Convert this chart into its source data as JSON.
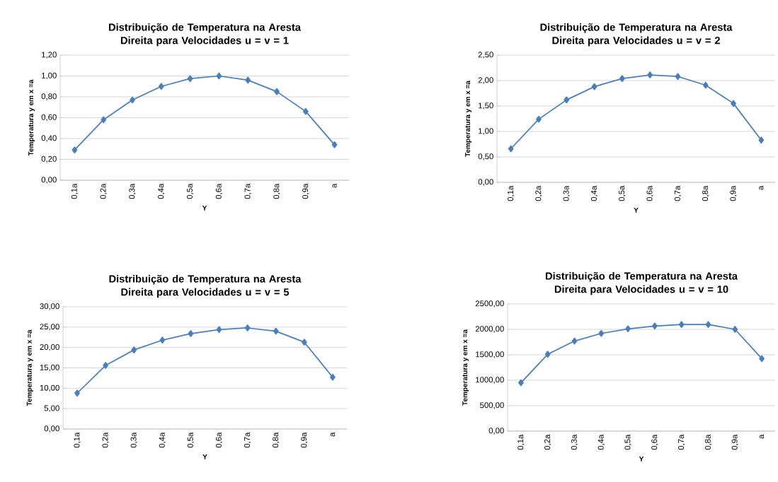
{
  "chart_data": [
    {
      "type": "line",
      "title": "Distribuição de Temperatura na Aresta Direita para Velocidades  u = v = 1",
      "xlabel": "Y",
      "ylabel": "Temperatura y em x =a",
      "categories": [
        "0,1a",
        "0,2a",
        "0,3a",
        "0,4a",
        "0,5a",
        "0,6a",
        "0,7a",
        "0,8a",
        "0,9a",
        "a"
      ],
      "series": [
        {
          "color": "#4a7ebb",
          "values": [
            0.29,
            0.58,
            0.77,
            0.9,
            0.975,
            1.0,
            0.96,
            0.85,
            0.66,
            0.34
          ]
        }
      ],
      "ylim": [
        0,
        1.2
      ],
      "yticks": [
        {
          "value": 0,
          "label": "0,00"
        },
        {
          "value": 0.2,
          "label": "0,20"
        },
        {
          "value": 0.4,
          "label": "0,40"
        },
        {
          "value": 0.6,
          "label": "0,60"
        },
        {
          "value": 0.8,
          "label": "0,80"
        },
        {
          "value": 1.0,
          "label": "1,00"
        },
        {
          "value": 1.2,
          "label": "1,20"
        }
      ],
      "grid": "y",
      "marker": "diamond",
      "line_style": "solid"
    },
    {
      "type": "line",
      "title": "Distribuição de Temperatura na Aresta Direita para Velocidades  u = v = 2",
      "xlabel": "Y",
      "ylabel": "Temperatura y em x =a",
      "categories": [
        "0,1a",
        "0,2a",
        "0,3a",
        "0,4a",
        "0,5a",
        "0,6a",
        "0,7a",
        "0,8a",
        "0,9a",
        "a"
      ],
      "series": [
        {
          "color": "#4a7ebb",
          "values": [
            0.66,
            1.24,
            1.62,
            1.88,
            2.04,
            2.11,
            2.08,
            1.91,
            1.55,
            0.83
          ]
        }
      ],
      "ylim": [
        0,
        2.5
      ],
      "yticks": [
        {
          "value": 0,
          "label": "0,00"
        },
        {
          "value": 0.5,
          "label": "0,50"
        },
        {
          "value": 1.0,
          "label": "1,00"
        },
        {
          "value": 1.5,
          "label": "1,50"
        },
        {
          "value": 2.0,
          "label": "2,00"
        },
        {
          "value": 2.5,
          "label": "2,50"
        }
      ],
      "grid": "y",
      "marker": "diamond",
      "line_style": "solid"
    },
    {
      "type": "line",
      "title": "Distribuição de Temperatura na Aresta Direita para Velocidades  u = v = 5",
      "xlabel": "Y",
      "ylabel": "Temperatura y em x =a",
      "categories": [
        "0,1a",
        "0,2a",
        "0,3a",
        "0,4a",
        "0,5a",
        "0,6a",
        "0,7a",
        "0,8a",
        "0,9a",
        "a"
      ],
      "series": [
        {
          "color": "#4a7ebb",
          "values": [
            8.8,
            15.6,
            19.4,
            21.8,
            23.4,
            24.4,
            24.8,
            24.0,
            21.3,
            12.7
          ]
        }
      ],
      "ylim": [
        0,
        30
      ],
      "yticks": [
        {
          "value": 0,
          "label": "0,00"
        },
        {
          "value": 5,
          "label": "5,00"
        },
        {
          "value": 10,
          "label": "10,00"
        },
        {
          "value": 15,
          "label": "15,00"
        },
        {
          "value": 20,
          "label": "20,00"
        },
        {
          "value": 25,
          "label": "25,00"
        },
        {
          "value": 30,
          "label": "30,00"
        }
      ],
      "grid": "y",
      "marker": "diamond",
      "line_style": "solid"
    },
    {
      "type": "line",
      "title": "Distribuição de Temperatura na Aresta Direita para Velocidades  u = v = 10",
      "xlabel": "Y",
      "ylabel": "Temperatura y em x =a",
      "categories": [
        "0,1a",
        "0,2a",
        "0,3a",
        "0,4a",
        "0,5a",
        "0,6a",
        "0,7a",
        "0,8a",
        "0,9a",
        "a"
      ],
      "series": [
        {
          "color": "#4a7ebb",
          "values": [
            950,
            1510,
            1770,
            1920,
            2010,
            2065,
            2095,
            2095,
            2000,
            1425
          ]
        }
      ],
      "ylim": [
        0,
        2500
      ],
      "yticks": [
        {
          "value": 0,
          "label": "0,00"
        },
        {
          "value": 500,
          "label": "500,00"
        },
        {
          "value": 1000,
          "label": "1000,00"
        },
        {
          "value": 1500,
          "label": "1500,00"
        },
        {
          "value": 2000,
          "label": "2000,00"
        },
        {
          "value": 2500,
          "label": "2500,00"
        }
      ],
      "grid": "y",
      "marker": "diamond",
      "line_style": "solid"
    }
  ]
}
